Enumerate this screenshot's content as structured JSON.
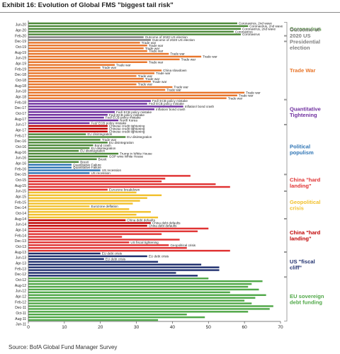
{
  "title": "Exhibit 16: Evolution of Global FMS \"biggest tail risk\"",
  "source": "Source: BofA Global Fund Manager Survey",
  "chart_data": {
    "type": "bar",
    "orientation": "horizontal",
    "title": "Exhibit 16: Evolution of Global FMS \"biggest tail risk\"",
    "xlabel": "",
    "ylabel": "",
    "xlim": [
      0,
      70
    ],
    "x_ticks": [
      0,
      10,
      20,
      30,
      40,
      50,
      60,
      70
    ],
    "grid": false,
    "categories": [
      "Jun-20",
      "Apr-20",
      "Feb-20",
      "Dec-19",
      "Oct-19",
      "Aug-19",
      "Jun-19",
      "Apr-19",
      "Feb-19",
      "Dec-18",
      "Oct-18",
      "Aug-18",
      "Jun-18",
      "Apr-18",
      "Feb-18",
      "Dec-17",
      "Oct-17",
      "Aug-17",
      "Jun-17",
      "Apr-17",
      "Feb-17",
      "Dec-16",
      "Oct-16",
      "Aug-16",
      "Jun-16",
      "Apr-16",
      "Feb-16",
      "Dec-15",
      "Oct-15",
      "Aug-15",
      "Jun-15",
      "Apr-15",
      "Feb-15",
      "Dec-14",
      "Oct-14",
      "Aug-14",
      "Jun-14",
      "Apr-14",
      "Feb-14",
      "Dec-13",
      "Oct-13",
      "Aug-13",
      "Jun-13",
      "Apr-13",
      "Feb-13",
      "Dec-12",
      "Oct-12",
      "Aug-12",
      "Jun-12",
      "Apr-12",
      "Feb-12",
      "Dec-11",
      "Oct-11",
      "Aug-11",
      "Jun-11"
    ],
    "bars": [
      {
        "v": 58,
        "c": "#4e8a3a",
        "t": "Coronavirus, 2nd wave"
      },
      {
        "v": 61,
        "c": "#4e8a3a",
        "t": "Coronavirus, 2nd wave"
      },
      {
        "v": 59,
        "c": "#4e8a3a",
        "t": "Coronavirus, 2nd wave"
      },
      {
        "v": 57,
        "c": "#4e8a3a",
        "t": "Coronavirus"
      },
      {
        "v": 59,
        "c": "#4e8a3a",
        "t": "Coronavirus"
      },
      {
        "v": 32,
        "c": "#7f7f7f",
        "t": "Outcome of 2020 US election"
      },
      {
        "v": 34,
        "c": "#7f7f7f",
        "t": "Outcome of 2020 US election"
      },
      {
        "v": 31,
        "c": "#e8762b",
        "t": "Trade war"
      },
      {
        "v": 33,
        "c": "#e8762b",
        "t": "Trade war"
      },
      {
        "v": 32,
        "c": "#e8762b",
        "t": "Trade war"
      },
      {
        "v": 33,
        "c": "#e8762b",
        "t": "Trade war"
      },
      {
        "v": 39,
        "c": "#e8762b",
        "t": "Trade war"
      },
      {
        "v": 48,
        "c": "#e8762b",
        "t": "Trade war"
      },
      {
        "v": 42,
        "c": "#e8762b",
        "t": "Trade war"
      },
      {
        "v": 33,
        "c": "#e8762b",
        "t": "Trade war"
      },
      {
        "v": 24,
        "c": "#e8762b",
        "t": "Trade war"
      },
      {
        "v": 20,
        "c": "#e8762b",
        "t": "Trade war"
      },
      {
        "v": 37,
        "c": "#e8762b",
        "t": "China slowdown"
      },
      {
        "v": 35,
        "c": "#e8762b",
        "t": "Trade war"
      },
      {
        "v": 30,
        "c": "#e8762b",
        "t": "Trade war"
      },
      {
        "v": 32,
        "c": "#e8762b",
        "t": "Trade war"
      },
      {
        "v": 34,
        "c": "#e8762b",
        "t": "Trade war"
      },
      {
        "v": 30,
        "c": "#e8762b",
        "t": "Trade war"
      },
      {
        "v": 40,
        "c": "#e8762b",
        "t": "Trade war"
      },
      {
        "v": 38,
        "c": "#e8762b",
        "t": "Trade war"
      },
      {
        "v": 60,
        "c": "#e8762b",
        "t": "Trade war"
      },
      {
        "v": 58,
        "c": "#e8762b",
        "t": "Trade war"
      },
      {
        "v": 55,
        "c": "#e8762b",
        "t": "Trade war"
      },
      {
        "v": 34,
        "c": "#7030a0",
        "t": "Fed/ ECB policy mistake"
      },
      {
        "v": 33,
        "c": "#7030a0",
        "t": "Fed/ ECB policy mistake"
      },
      {
        "v": 43,
        "c": "#7030a0",
        "t": "Inflation/ bond crash"
      },
      {
        "v": 35,
        "c": "#7030a0",
        "t": "Inflation/ bond crash"
      },
      {
        "v": 24,
        "c": "#7030a0",
        "t": "Fed/ ECB policy mistake"
      },
      {
        "v": 22,
        "c": "#7030a0",
        "t": "Fed/ ECB policy mistake"
      },
      {
        "v": 21,
        "c": "#7030a0",
        "t": "Fed/ ECB policy mistake"
      },
      {
        "v": 25,
        "c": "#7030a0",
        "t": "North Korea"
      },
      {
        "v": 17,
        "c": "#7030a0",
        "t": "Fed/ ECB policy mistake"
      },
      {
        "v": 22,
        "c": "#c00000",
        "t": "Chinese credit tightening"
      },
      {
        "v": 22,
        "c": "#c00000",
        "t": "Chinese credit tightening"
      },
      {
        "v": 22,
        "c": "#c00000",
        "t": "Chinese credit tightening"
      },
      {
        "v": 16,
        "c": "#4e8a3a",
        "t": "EU disintegration"
      },
      {
        "v": 27,
        "c": "#4e8a3a",
        "t": "EU disintegration"
      },
      {
        "v": 20,
        "c": "#4e8a3a",
        "t": "Trade war"
      },
      {
        "v": 22,
        "c": "#4e8a3a",
        "t": "EU disintegration"
      },
      {
        "v": 18,
        "c": "#4e8a3a",
        "t": "Bond crash"
      },
      {
        "v": 17,
        "c": "#4e8a3a",
        "t": "EU disintegration"
      },
      {
        "v": 14,
        "c": "#4e8a3a",
        "t": "EU disintegration"
      },
      {
        "v": 25,
        "c": "#4e8a3a",
        "t": "Trump in White House"
      },
      {
        "v": 22,
        "c": "#4e8a3a",
        "t": "GOP wins White House"
      },
      {
        "v": 19,
        "c": "#4e8a3a",
        "t": "Brexit"
      },
      {
        "v": 14,
        "c": "#4e8a3a",
        "t": "Brexit"
      },
      {
        "v": 12,
        "c": "#2f75b5",
        "t": "Quantitative Failure"
      },
      {
        "v": 12,
        "c": "#2f75b5",
        "t": "Quantitative Failure"
      },
      {
        "v": 20,
        "c": "#2f75b5",
        "t": "US recession"
      },
      {
        "v": 17,
        "c": "#2f75b5",
        "t": "US recession"
      },
      {
        "v": 45,
        "c": "#e03232",
        "t": ""
      },
      {
        "v": 38,
        "c": "#e03232",
        "t": ""
      },
      {
        "v": 37,
        "c": "#e03232",
        "t": ""
      },
      {
        "v": 52,
        "c": "#e03232",
        "t": ""
      },
      {
        "v": 56,
        "c": "#e03232",
        "t": ""
      },
      {
        "v": 22,
        "c": "#e03232",
        "t": "Eurozone breakdown"
      },
      {
        "v": 30,
        "c": "#f2c12e",
        "t": ""
      },
      {
        "v": 37,
        "c": "#f2c12e",
        "t": ""
      },
      {
        "v": 33,
        "c": "#f2c12e",
        "t": ""
      },
      {
        "v": 31,
        "c": "#f2c12e",
        "t": ""
      },
      {
        "v": 29,
        "c": "#f2c12e",
        "t": ""
      },
      {
        "v": 17,
        "c": "#f2c12e",
        "t": "Eurozone deflation"
      },
      {
        "v": 28,
        "c": "#f2c12e",
        "t": ""
      },
      {
        "v": 34,
        "c": "#f2c12e",
        "t": ""
      },
      {
        "v": 30,
        "c": "#f2c12e",
        "t": ""
      },
      {
        "v": 36,
        "c": "#f2c12e",
        "t": ""
      },
      {
        "v": 27,
        "c": "#c00000",
        "t": "China debt defaults"
      },
      {
        "v": 34,
        "c": "#c00000",
        "t": "China debt defaults"
      },
      {
        "v": 33,
        "c": "#c00000",
        "t": "China debt defaults"
      },
      {
        "v": 50,
        "c": "#e03232",
        "t": ""
      },
      {
        "v": 47,
        "c": "#e03232",
        "t": ""
      },
      {
        "v": 37,
        "c": "#e03232",
        "t": ""
      },
      {
        "v": 26,
        "c": "#e03232",
        "t": ""
      },
      {
        "v": 42,
        "c": "#e03232",
        "t": ""
      },
      {
        "v": 28,
        "c": "#e03232",
        "t": "US fiscal tightening"
      },
      {
        "v": 39,
        "c": "#e03232",
        "t": "Geopolitical crisis"
      },
      {
        "v": 44,
        "c": "#e03232",
        "t": ""
      },
      {
        "v": 56,
        "c": "#e03232",
        "t": ""
      },
      {
        "v": 20,
        "c": "#1f2f6e",
        "t": "EU debt crisis"
      },
      {
        "v": 33,
        "c": "#1f2f6e",
        "t": "EU debt crisis"
      },
      {
        "v": 21,
        "c": "#1f2f6e",
        "t": "EU debt crisis"
      },
      {
        "v": 36,
        "c": "#1f2f6e",
        "t": ""
      },
      {
        "v": 48,
        "c": "#1f2f6e",
        "t": ""
      },
      {
        "v": 53,
        "c": "#1f2f6e",
        "t": ""
      },
      {
        "v": 53,
        "c": "#1f2f6e",
        "t": ""
      },
      {
        "v": 41,
        "c": "#1f2f6e",
        "t": ""
      },
      {
        "v": 47,
        "c": "#1f2f6e",
        "t": ""
      },
      {
        "v": 50,
        "c": "#50a848",
        "t": ""
      },
      {
        "v": 65,
        "c": "#50a848",
        "t": ""
      },
      {
        "v": 62,
        "c": "#50a848",
        "t": ""
      },
      {
        "v": 61,
        "c": "#50a848",
        "t": ""
      },
      {
        "v": 64,
        "c": "#50a848",
        "t": ""
      },
      {
        "v": 56,
        "c": "#50a848",
        "t": ""
      },
      {
        "v": 66,
        "c": "#50a848",
        "t": ""
      },
      {
        "v": 63,
        "c": "#50a848",
        "t": ""
      },
      {
        "v": 60,
        "c": "#50a848",
        "t": ""
      },
      {
        "v": 62,
        "c": "#50a848",
        "t": ""
      },
      {
        "v": 68,
        "c": "#50a848",
        "t": ""
      },
      {
        "v": 67,
        "c": "#50a848",
        "t": ""
      },
      {
        "v": 61,
        "c": "#50a848",
        "t": ""
      },
      {
        "v": 44,
        "c": "#50a848",
        "t": ""
      },
      {
        "v": 49,
        "c": "#50a848",
        "t": ""
      },
      {
        "v": 36,
        "c": "#50a848",
        "t": ""
      }
    ],
    "groups": [
      {
        "label": "Coronavirus",
        "color": "#4e8a3a",
        "from": 0,
        "to": 4
      },
      {
        "label": "Outcome of 2020 US Presidential election",
        "color": "#7f7f7f",
        "from": 5,
        "to": 6
      },
      {
        "label": "Trade War",
        "color": "#e8762b",
        "from": 7,
        "to": 27
      },
      {
        "label": "Quantitative Tightening",
        "color": "#7030a0",
        "from": 28,
        "to": 36
      },
      {
        "label": "Political populism",
        "color": "#2f75b5",
        "from": 37,
        "to": 54
      },
      {
        "label": "China \"hard landing\"",
        "color": "#e03232",
        "from": 55,
        "to": 60
      },
      {
        "label": "Geopolitical crisis",
        "color": "#f2c12e",
        "from": 61,
        "to": 70
      },
      {
        "label": "China \"hard landing\"",
        "color": "#c00000",
        "from": 71,
        "to": 82
      },
      {
        "label": "US \"fiscal cliff\"",
        "color": "#1f2f6e",
        "from": 83,
        "to": 91
      },
      {
        "label": "EU sovereign debt funding",
        "color": "#50a848",
        "from": 92,
        "to": 107
      }
    ]
  }
}
